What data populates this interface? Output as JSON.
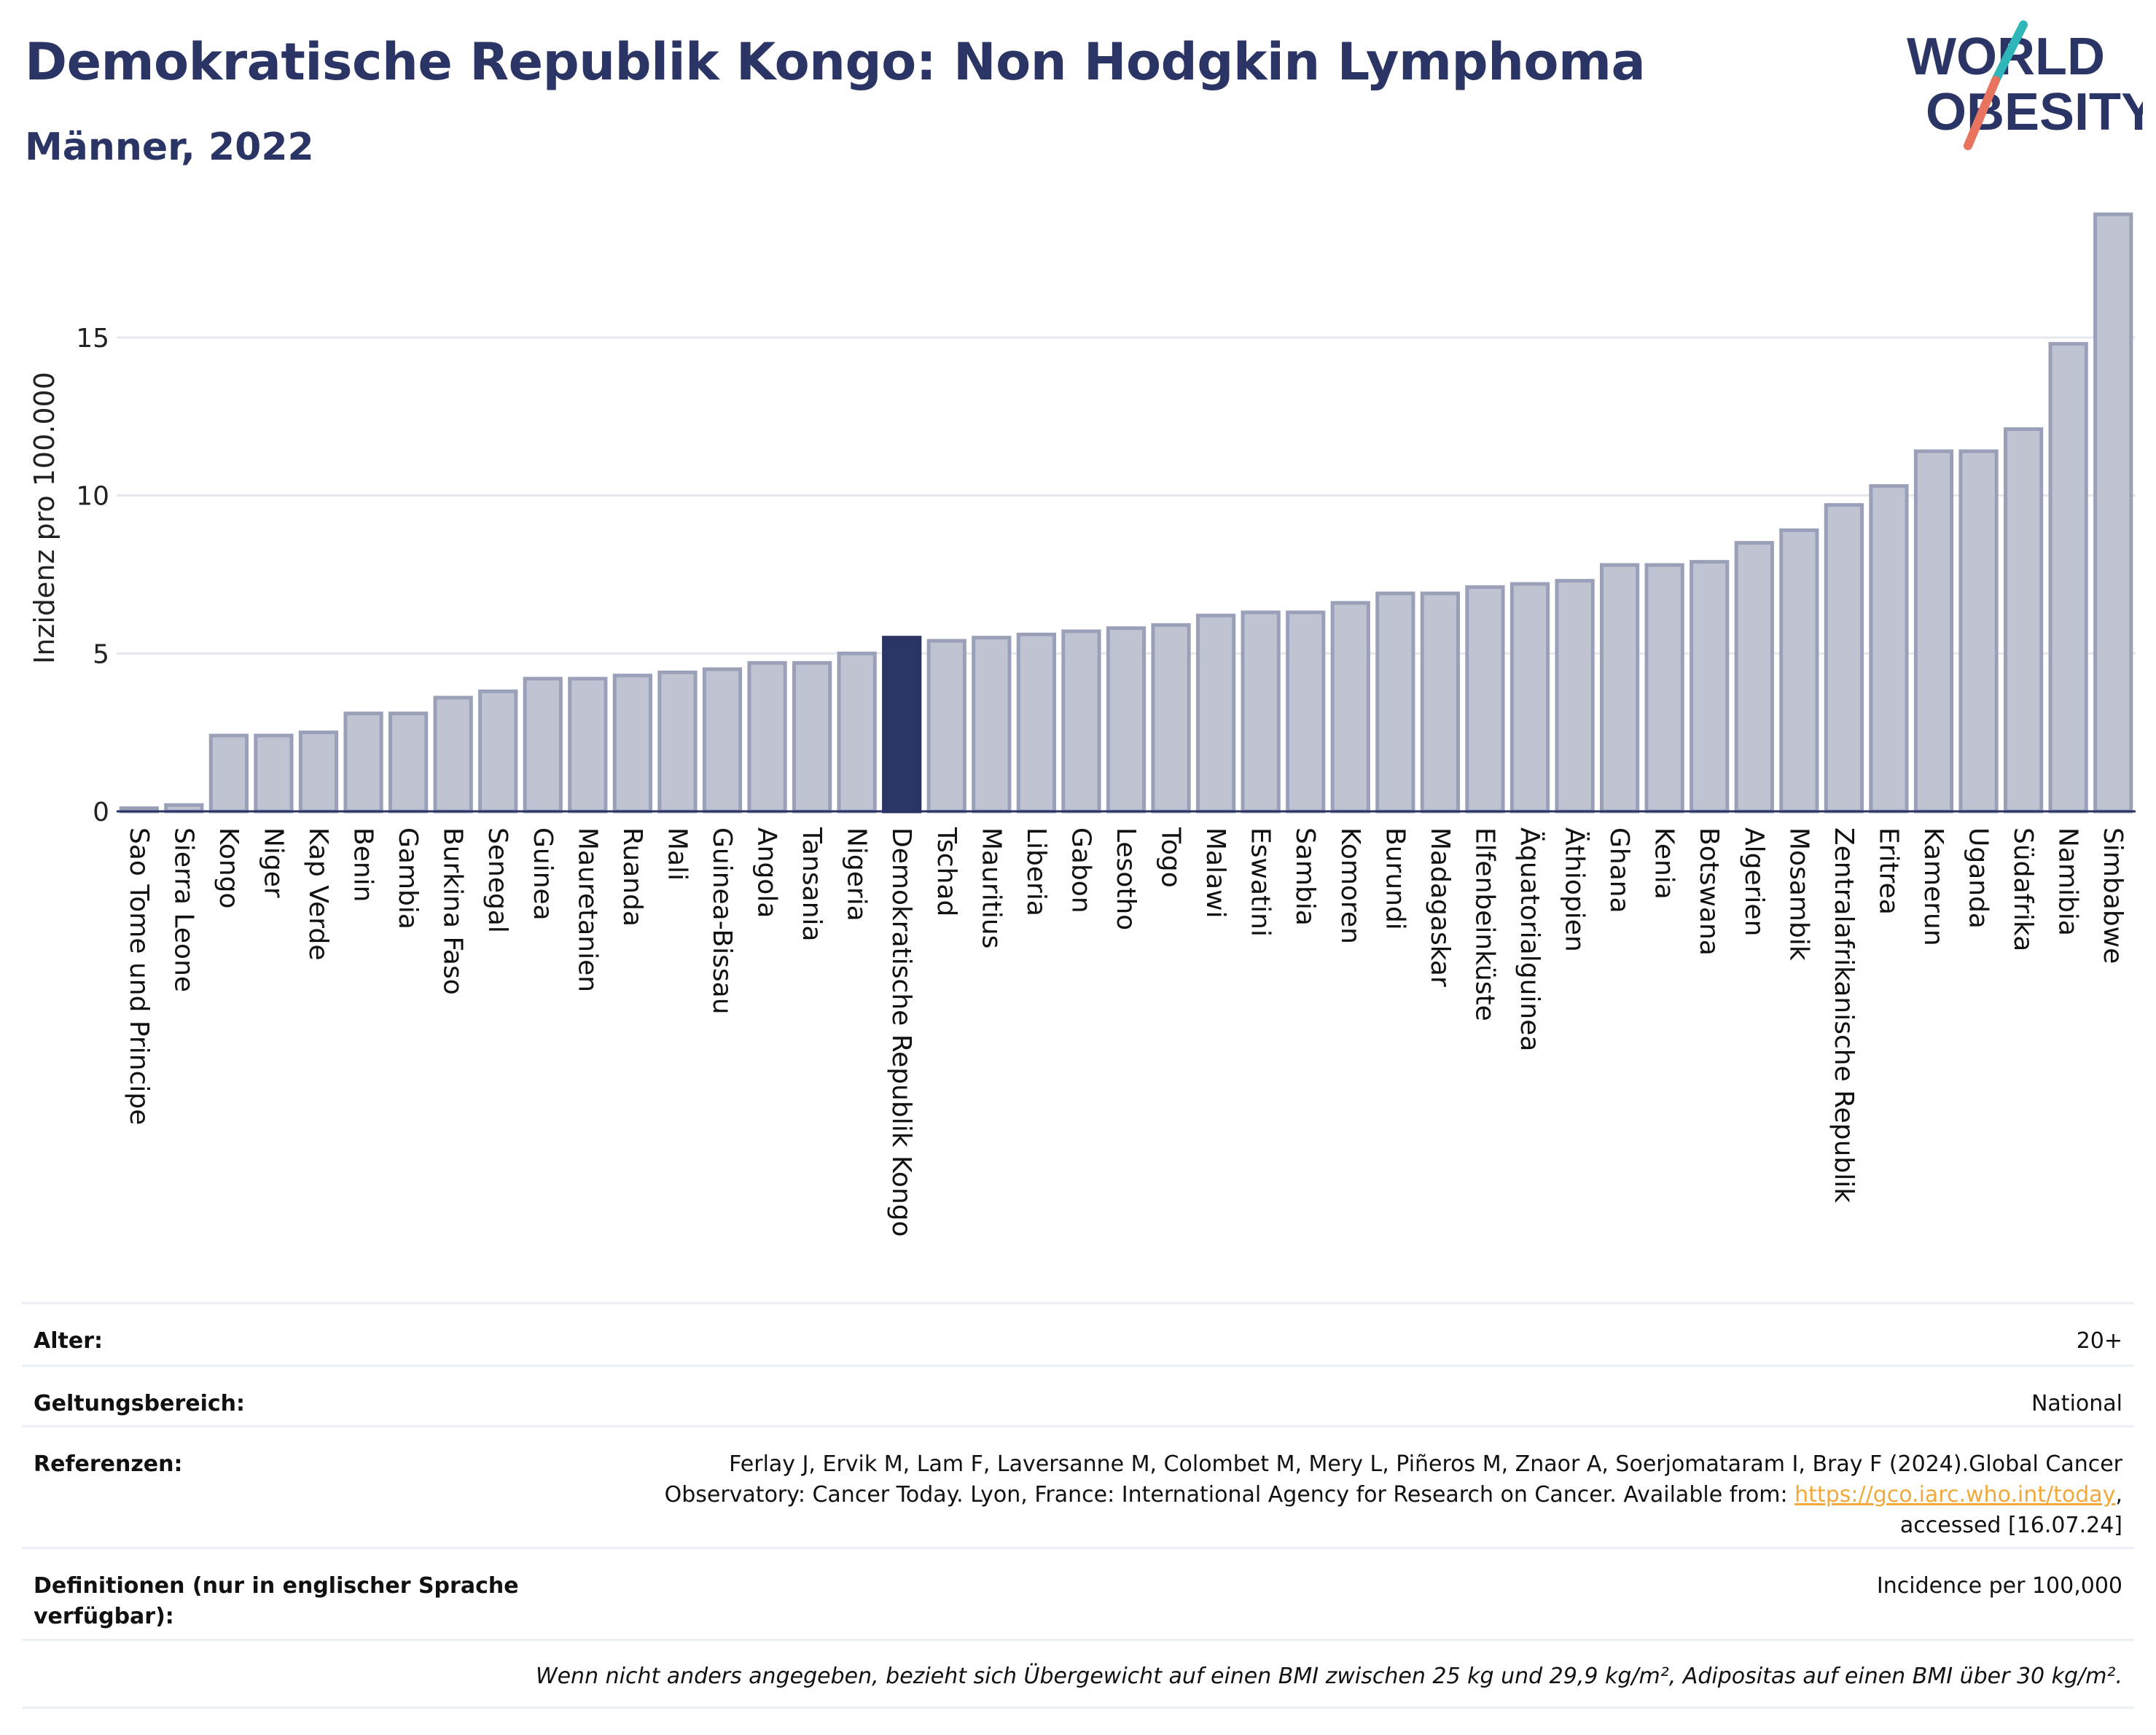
{
  "header": {
    "title": "Demokratische Republik Kongo: Non Hodgkin Lymphoma",
    "subtitle": "Männer, 2022",
    "logo_text_line1": "WORLD",
    "logo_text_line2": "OBESITY"
  },
  "colors": {
    "title": "#2b3565",
    "bar_default": "#c0c4d2",
    "bar_default_stroke": "#9aa0b8",
    "bar_highlight": "#2b3565",
    "logo_teal": "#2fb6b8",
    "logo_coral": "#e8735f",
    "link": "#f2a93b"
  },
  "chart_data": {
    "type": "bar",
    "ylabel": "Inzidenz pro 100.000",
    "ylim": [
      0,
      19.5
    ],
    "yticks": [
      0,
      5,
      10,
      15
    ],
    "grid": true,
    "highlight": "Demokratische Republik Kongo",
    "categories": [
      "Sao Tome und Principe",
      "Sierra Leone",
      "Kongo",
      "Niger",
      "Kap Verde",
      "Benin",
      "Gambia",
      "Burkina Faso",
      "Senegal",
      "Guinea",
      "Mauretanien",
      "Ruanda",
      "Mali",
      "Guinea-Bissau",
      "Angola",
      "Tansania",
      "Nigeria",
      "Demokratische Republik Kongo",
      "Tschad",
      "Mauritius",
      "Liberia",
      "Gabon",
      "Lesotho",
      "Togo",
      "Malawi",
      "Eswatini",
      "Sambia",
      "Komoren",
      "Burundi",
      "Madagaskar",
      "Elfenbeinküste",
      "Äquatorialguinea",
      "Äthiopien",
      "Ghana",
      "Kenia",
      "Botswana",
      "Algerien",
      "Mosambik",
      "Zentralafrikanische Republik",
      "Eritrea",
      "Kamerun",
      "Uganda",
      "Südafrika",
      "Namibia",
      "Simbabwe"
    ],
    "values": [
      0.1,
      0.2,
      2.4,
      2.4,
      2.5,
      3.1,
      3.1,
      3.6,
      3.8,
      4.2,
      4.2,
      4.3,
      4.4,
      4.5,
      4.7,
      4.7,
      5.0,
      5.5,
      5.4,
      5.5,
      5.6,
      5.7,
      5.8,
      5.9,
      6.2,
      6.3,
      6.3,
      6.6,
      6.9,
      6.9,
      7.1,
      7.2,
      7.3,
      7.8,
      7.8,
      7.9,
      8.5,
      8.9,
      9.7,
      10.3,
      11.4,
      11.4,
      12.1,
      14.8,
      18.9
    ]
  },
  "info": {
    "age_label": "Alter:",
    "age_value": "20+",
    "scope_label": "Geltungsbereich:",
    "scope_value": "National",
    "ref_label": "Referenzen:",
    "ref_text": "Ferlay J, Ervik M, Lam F, Laversanne M, Colombet M, Mery L, Piñeros M, Znaor A, Soerjomataram I, Bray F (2024).Global Cancer Observatory: Cancer Today. Lyon, France: International Agency for Research on Cancer. Available from: ",
    "ref_link": "https://gco.iarc.who.int/today",
    "ref_suffix": ", accessed [16.07.24]",
    "def_label": "Definitionen (nur in englischer Sprache verfügbar):",
    "def_value": "Incidence per 100,000",
    "note": "Wenn nicht anders angegeben, bezieht sich Übergewicht auf einen BMI zwischen 25 kg und 29,9 kg/m², Adipositas auf einen BMI über 30 kg/m²."
  }
}
